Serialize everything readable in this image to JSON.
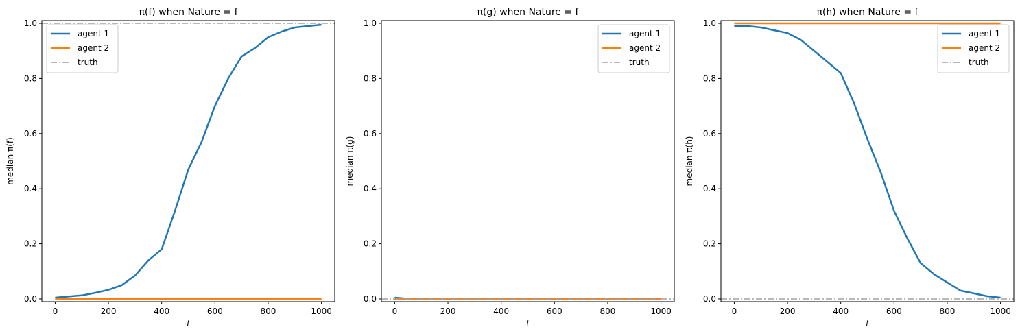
{
  "chart_data": [
    {
      "type": "line",
      "title": "π(f) when Nature = f",
      "xlabel": "t",
      "ylabel": "median π(f)",
      "xlim": [
        -50,
        1050
      ],
      "ylim": [
        -0.01,
        1.01
      ],
      "xticks": [
        0,
        200,
        400,
        600,
        800,
        1000
      ],
      "yticks": [
        0.0,
        0.2,
        0.4,
        0.6,
        0.8,
        1.0
      ],
      "legend": "top-left",
      "grid": false,
      "x": [
        0,
        50,
        100,
        150,
        200,
        250,
        300,
        350,
        400,
        450,
        500,
        550,
        600,
        650,
        700,
        750,
        800,
        850,
        900,
        950,
        1000
      ],
      "series": [
        {
          "name": "agent 1",
          "color": "#1f77b4",
          "style": "solid",
          "values": [
            0.005,
            0.009,
            0.013,
            0.022,
            0.033,
            0.05,
            0.085,
            0.14,
            0.18,
            0.32,
            0.47,
            0.57,
            0.7,
            0.8,
            0.88,
            0.91,
            0.95,
            0.97,
            0.985,
            0.99,
            0.995
          ]
        },
        {
          "name": "agent 2",
          "color": "#ff7f0e",
          "style": "solid",
          "values": [
            0,
            0,
            0,
            0,
            0,
            0,
            0,
            0,
            0,
            0,
            0,
            0,
            0,
            0,
            0,
            0,
            0,
            0,
            0,
            0,
            0
          ]
        },
        {
          "name": "truth",
          "color": "#a0a0a0",
          "style": "dashdot",
          "hline": 1.0
        }
      ]
    },
    {
      "type": "line",
      "title": "π(g) when Nature = f",
      "xlabel": "t",
      "ylabel": "median π(g)",
      "xlim": [
        -50,
        1050
      ],
      "ylim": [
        -0.01,
        1.01
      ],
      "xticks": [
        0,
        200,
        400,
        600,
        800,
        1000
      ],
      "yticks": [
        0.0,
        0.2,
        0.4,
        0.6,
        0.8,
        1.0
      ],
      "legend": "top-right",
      "grid": false,
      "x": [
        0,
        50,
        100,
        150,
        200,
        250,
        300,
        350,
        400,
        450,
        500,
        550,
        600,
        650,
        700,
        750,
        800,
        850,
        900,
        950,
        1000
      ],
      "series": [
        {
          "name": "agent 1",
          "color": "#1f77b4",
          "style": "solid",
          "values": [
            0.005,
            0.001,
            0.001,
            0.001,
            0.001,
            0.001,
            0.001,
            0.001,
            0.001,
            0.001,
            0.001,
            0.001,
            0.001,
            0.001,
            0.001,
            0.001,
            0.001,
            0.001,
            0.001,
            0.001,
            0.001
          ]
        },
        {
          "name": "agent 2",
          "color": "#ff7f0e",
          "style": "solid",
          "values": [
            0,
            0,
            0,
            0,
            0,
            0,
            0,
            0,
            0,
            0,
            0,
            0,
            0,
            0,
            0,
            0,
            0,
            0,
            0,
            0,
            0
          ]
        },
        {
          "name": "truth",
          "color": "#a0a0a0",
          "style": "dashdot",
          "hline": 0.0
        }
      ]
    },
    {
      "type": "line",
      "title": "π(h) when Nature = f",
      "xlabel": "t",
      "ylabel": "median π(h)",
      "xlim": [
        -50,
        1050
      ],
      "ylim": [
        -0.01,
        1.01
      ],
      "xticks": [
        0,
        200,
        400,
        600,
        800,
        1000
      ],
      "yticks": [
        0.0,
        0.2,
        0.4,
        0.6,
        0.8,
        1.0
      ],
      "legend": "top-right",
      "grid": false,
      "x": [
        0,
        50,
        100,
        150,
        200,
        250,
        300,
        350,
        400,
        450,
        500,
        550,
        600,
        650,
        700,
        750,
        800,
        850,
        900,
        950,
        1000
      ],
      "series": [
        {
          "name": "agent 1",
          "color": "#1f77b4",
          "style": "solid",
          "values": [
            0.99,
            0.99,
            0.985,
            0.975,
            0.965,
            0.94,
            0.9,
            0.86,
            0.82,
            0.71,
            0.58,
            0.46,
            0.32,
            0.22,
            0.13,
            0.09,
            0.06,
            0.03,
            0.02,
            0.01,
            0.005
          ]
        },
        {
          "name": "agent 2",
          "color": "#ff7f0e",
          "style": "solid",
          "values": [
            1,
            1,
            1,
            1,
            1,
            1,
            1,
            1,
            1,
            1,
            1,
            1,
            1,
            1,
            1,
            1,
            1,
            1,
            1,
            1,
            1
          ]
        },
        {
          "name": "truth",
          "color": "#a0a0a0",
          "style": "dashdot",
          "hline": 0.0
        }
      ]
    }
  ]
}
